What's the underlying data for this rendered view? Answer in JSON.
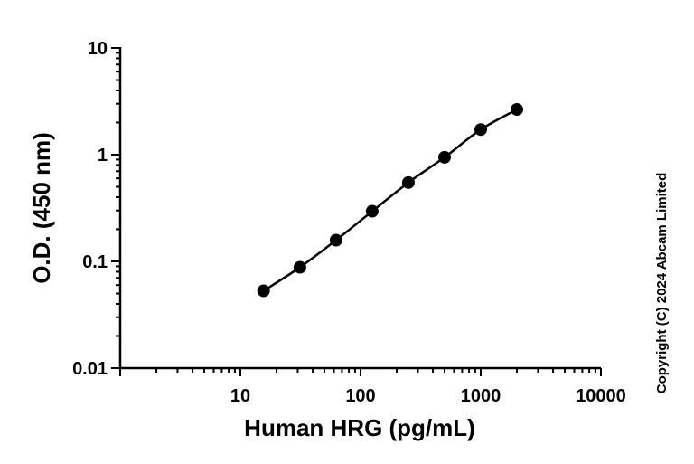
{
  "chart_data": {
    "type": "scatter",
    "xlabel": "Human HRG (pg/mL)",
    "ylabel": "O.D. (450 nm)",
    "x_scale": "log",
    "y_scale": "log",
    "xlim": [
      1,
      10000
    ],
    "ylim": [
      0.01,
      10
    ],
    "x_tick_labels": [
      {
        "value": 10,
        "label": "10"
      },
      {
        "value": 100,
        "label": "100"
      },
      {
        "value": 1000,
        "label": "1000"
      },
      {
        "value": 10000,
        "label": "10000"
      }
    ],
    "y_tick_labels": [
      {
        "value": 0.01,
        "label": "0.01"
      },
      {
        "value": 0.1,
        "label": "0.1"
      },
      {
        "value": 1,
        "label": "1"
      },
      {
        "value": 10,
        "label": "10"
      }
    ],
    "grid": false,
    "fit_line": true,
    "series": [
      {
        "x": [
          15.6,
          31.3,
          62.5,
          125,
          250,
          500,
          1000,
          2000
        ],
        "y": [
          0.053,
          0.088,
          0.158,
          0.295,
          0.548,
          0.945,
          1.72,
          2.65
        ],
        "color": "#000000"
      }
    ]
  },
  "copyright": "Copyright (C) 2024 Abcam Limited"
}
